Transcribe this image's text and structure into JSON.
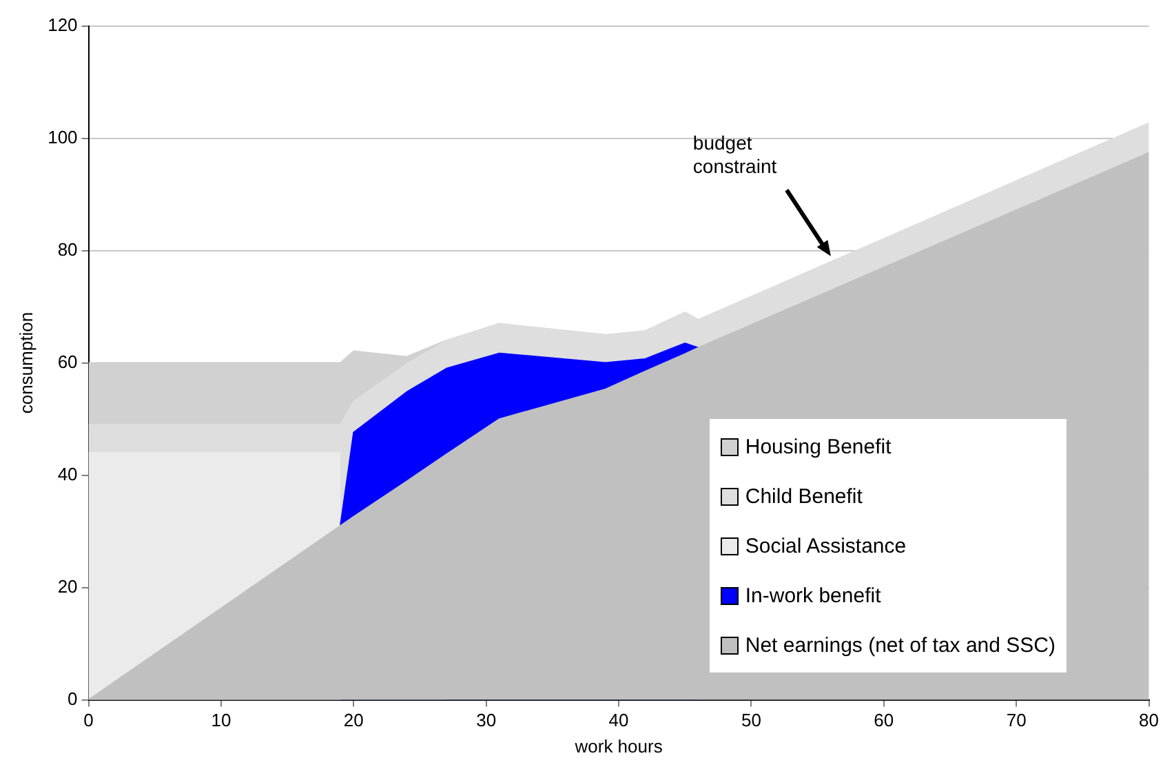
{
  "chart_data": {
    "type": "area",
    "stacked": true,
    "xlabel": "work hours",
    "ylabel": "consumption",
    "x": [
      0,
      19,
      20,
      24,
      27,
      31,
      39,
      42,
      45,
      46,
      80
    ],
    "xlim": [
      0,
      80
    ],
    "xticks": [
      0,
      10,
      20,
      30,
      40,
      50,
      60,
      70,
      80
    ],
    "ylim": [
      0,
      120
    ],
    "yticks": [
      0,
      20,
      40,
      60,
      80,
      100,
      120
    ],
    "grid": "y",
    "legend": "bottom right",
    "series": [
      {
        "name": "Net earnings (net of tax and SSC)",
        "color": "#c0c0c0",
        "values": [
          0,
          31,
          32.6,
          38.9,
          43.7,
          50,
          55.3,
          58.5,
          61.6,
          62.7,
          97.4
        ]
      },
      {
        "name": "In-work benefit",
        "color": "#0000ff",
        "values": [
          null,
          0,
          15,
          15.9,
          15.3,
          11.7,
          4.7,
          2.2,
          1.9,
          0,
          null
        ]
      },
      {
        "name": "Social Assistance",
        "color": "#ebebeb",
        "values": [
          44,
          13,
          null,
          null,
          null,
          null,
          null,
          null,
          null,
          null,
          null
        ]
      },
      {
        "name": "Child Benefit",
        "color": "#dedede",
        "values": [
          5,
          5,
          5.5,
          5,
          5,
          5.3,
          5,
          5,
          5.5,
          5,
          5.3
        ]
      },
      {
        "name": "Housing Benefit",
        "color": "#d1d1d1",
        "values": [
          11,
          11,
          9,
          1.3,
          0,
          null,
          null,
          null,
          null,
          null,
          null
        ]
      }
    ],
    "annotations": [
      {
        "text": "budget constraint",
        "x": 56,
        "y": 79
      }
    ]
  }
}
